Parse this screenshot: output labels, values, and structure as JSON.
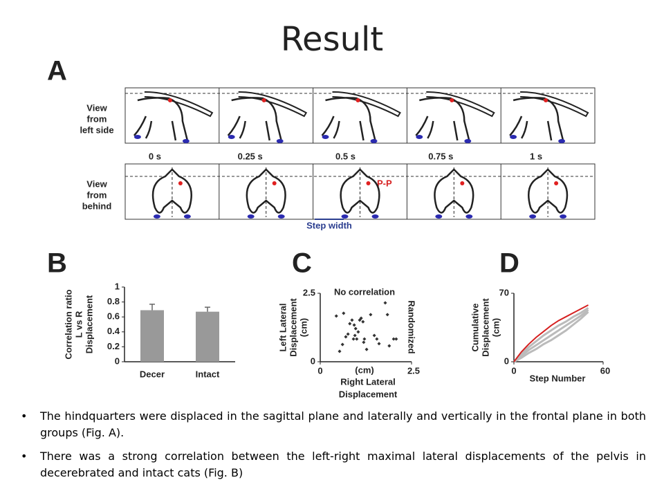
{
  "title": "Result",
  "panel_a": {
    "label": "A",
    "row_labels": [
      [
        "View",
        "from",
        "left side"
      ],
      [
        "View",
        "from",
        "behind"
      ]
    ],
    "times": [
      "0 s",
      "0.25 s",
      "0.5 s",
      "0.75 s",
      "1 s"
    ],
    "annotation": "P-P",
    "step_width": "Step width"
  },
  "chart_data": [
    {
      "type": "bar",
      "label": "B",
      "ylabel": [
        "Correlation ratio",
        "L vs R",
        "Displacement"
      ],
      "categories": [
        "Decer",
        "Intact"
      ],
      "values": [
        0.69,
        0.67
      ],
      "errors": [
        0.08,
        0.06
      ],
      "color": "#999999",
      "ylim": [
        0,
        1
      ],
      "yticks": [
        0,
        0.2,
        0.4,
        0.6,
        0.8,
        1
      ]
    },
    {
      "type": "scatter",
      "label": "C",
      "title": "No correlation",
      "side_label": "Randomized",
      "ylabel": [
        "Left Lateral",
        "Displacement",
        "(cm)"
      ],
      "xlabel": [
        "Right Lateral",
        "Displacement"
      ],
      "x_unit": "(cm)",
      "x": [
        0.44,
        0.64,
        0.7,
        0.76,
        0.81,
        0.87,
        0.91,
        0.93,
        0.95,
        0.97,
        1.0,
        1.04,
        1.08,
        1.12,
        1.17,
        1.19,
        0.53,
        0.61,
        1.21,
        1.27,
        1.38,
        1.48,
        1.55,
        1.61,
        1.78,
        1.84,
        1.89,
        2.01,
        2.08
      ],
      "values": [
        1.67,
        1.77,
        0.91,
        1.01,
        1.39,
        1.52,
        0.83,
        1.34,
        0.96,
        1.21,
        0.83,
        1.09,
        1.52,
        1.59,
        1.46,
        0.71,
        0.38,
        0.63,
        0.83,
        0.45,
        1.72,
        0.96,
        0.83,
        0.66,
        2.15,
        1.72,
        0.58,
        0.83,
        0.83
      ],
      "color": "#333333",
      "xlim": [
        0,
        2.5
      ],
      "ylim": [
        0,
        2.5
      ],
      "xticks": [
        0,
        2.5
      ],
      "yticks": [
        0,
        2.5
      ]
    },
    {
      "type": "line",
      "label": "D",
      "ylabel": [
        "Cumulative",
        "Displacement",
        "(cm)"
      ],
      "xlabel": "Step Number",
      "x": [
        0,
        5,
        10,
        15,
        20,
        25,
        30,
        35,
        40,
        45,
        50
      ],
      "series": [
        {
          "color": "#bbbbbb",
          "values": [
            0,
            8,
            15,
            21,
            27,
            32,
            37,
            41,
            46,
            50,
            55
          ]
        },
        {
          "color": "#bbbbbb",
          "values": [
            0,
            6,
            12,
            17,
            22,
            27,
            32,
            37,
            42,
            47,
            53
          ]
        },
        {
          "color": "#bbbbbb",
          "values": [
            0,
            4,
            9,
            13,
            18,
            22,
            27,
            32,
            38,
            44,
            51
          ]
        },
        {
          "color": "#d62020",
          "values": [
            0,
            10,
            18,
            25,
            31,
            37,
            42,
            46,
            50,
            54,
            58
          ]
        }
      ],
      "xlim": [
        0,
        60
      ],
      "ylim": [
        0,
        70
      ],
      "xticks": [
        0,
        60
      ],
      "yticks": [
        0,
        70
      ]
    }
  ],
  "bullets": [
    "The hindquarters were displaced in the sagittal plane and laterally and vertically in the frontal plane in both groups (Fig. A).",
    "There was a strong correlation between the left-right maximal lateral displacements of the pelvis in decerebrated and intact cats (Fig. B)"
  ]
}
